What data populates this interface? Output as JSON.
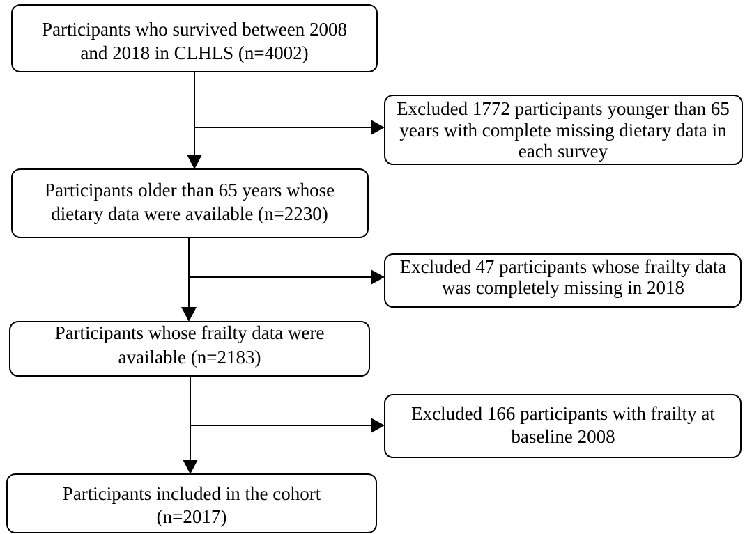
{
  "nodes": [
    {
      "lines": [
        "Participants who survived between 2008",
        "and 2018 in CLHLS (n=4002)"
      ]
    },
    {
      "lines": [
        "Excluded 1772 participants younger than 65",
        "years with  complete missing dietary data in",
        "each survey"
      ]
    },
    {
      "lines": [
        "Participants older than 65 years whose",
        "dietary data were available (n=2230)"
      ]
    },
    {
      "lines": [
        "Excluded 47 participants whose frailty data",
        "was completely missing in  2018"
      ]
    },
    {
      "lines": [
        "Participants whose frailty data were",
        "available (n=2183)"
      ]
    },
    {
      "lines": [
        "Excluded 166 participants with frailty at",
        "baseline 2008"
      ]
    },
    {
      "lines": [
        "Participants included in the cohort",
        "(n=2017)"
      ]
    }
  ]
}
